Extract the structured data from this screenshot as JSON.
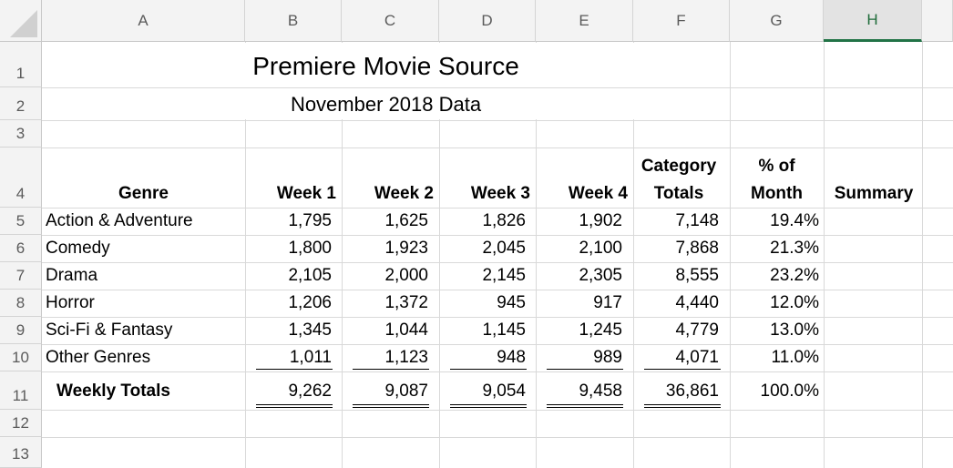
{
  "columns": [
    "A",
    "B",
    "C",
    "D",
    "E",
    "F",
    "G",
    "H"
  ],
  "rows": [
    "1",
    "2",
    "3",
    "4",
    "5",
    "6",
    "7",
    "8",
    "9",
    "10",
    "11",
    "12",
    "13"
  ],
  "title": "Premiere Movie Source",
  "subtitle": "November 2018 Data",
  "headers": {
    "genre": "Genre",
    "week1": "Week 1",
    "week2": "Week 2",
    "week3": "Week 3",
    "week4": "Week 4",
    "category_line1": "Category",
    "category_line2": "Totals",
    "pct_line1": "% of",
    "pct_line2": "Month",
    "summary": "Summary"
  },
  "data_rows": [
    {
      "genre": "Action & Adventure",
      "w1": "1,795",
      "w2": "1,625",
      "w3": "1,826",
      "w4": "1,902",
      "total": "7,148",
      "pct": "19.4%"
    },
    {
      "genre": "Comedy",
      "w1": "1,800",
      "w2": "1,923",
      "w3": "2,045",
      "w4": "2,100",
      "total": "7,868",
      "pct": "21.3%"
    },
    {
      "genre": "Drama",
      "w1": "2,105",
      "w2": "2,000",
      "w3": "2,145",
      "w4": "2,305",
      "total": "8,555",
      "pct": "23.2%"
    },
    {
      "genre": "Horror",
      "w1": "1,206",
      "w2": "1,372",
      "w3": "945",
      "w4": "917",
      "total": "4,440",
      "pct": "12.0%"
    },
    {
      "genre": "Sci-Fi & Fantasy",
      "w1": "1,345",
      "w2": "1,044",
      "w3": "1,145",
      "w4": "1,245",
      "total": "4,779",
      "pct": "13.0%"
    },
    {
      "genre": "Other Genres",
      "w1": "1,011",
      "w2": "1,123",
      "w3": "948",
      "w4": "989",
      "total": "4,071",
      "pct": "11.0%"
    }
  ],
  "totals": {
    "label": "Weekly Totals",
    "w1": "9,262",
    "w2": "9,087",
    "w3": "9,054",
    "w4": "9,458",
    "total": "36,861",
    "pct": "100.0%"
  },
  "selected_column": "H"
}
